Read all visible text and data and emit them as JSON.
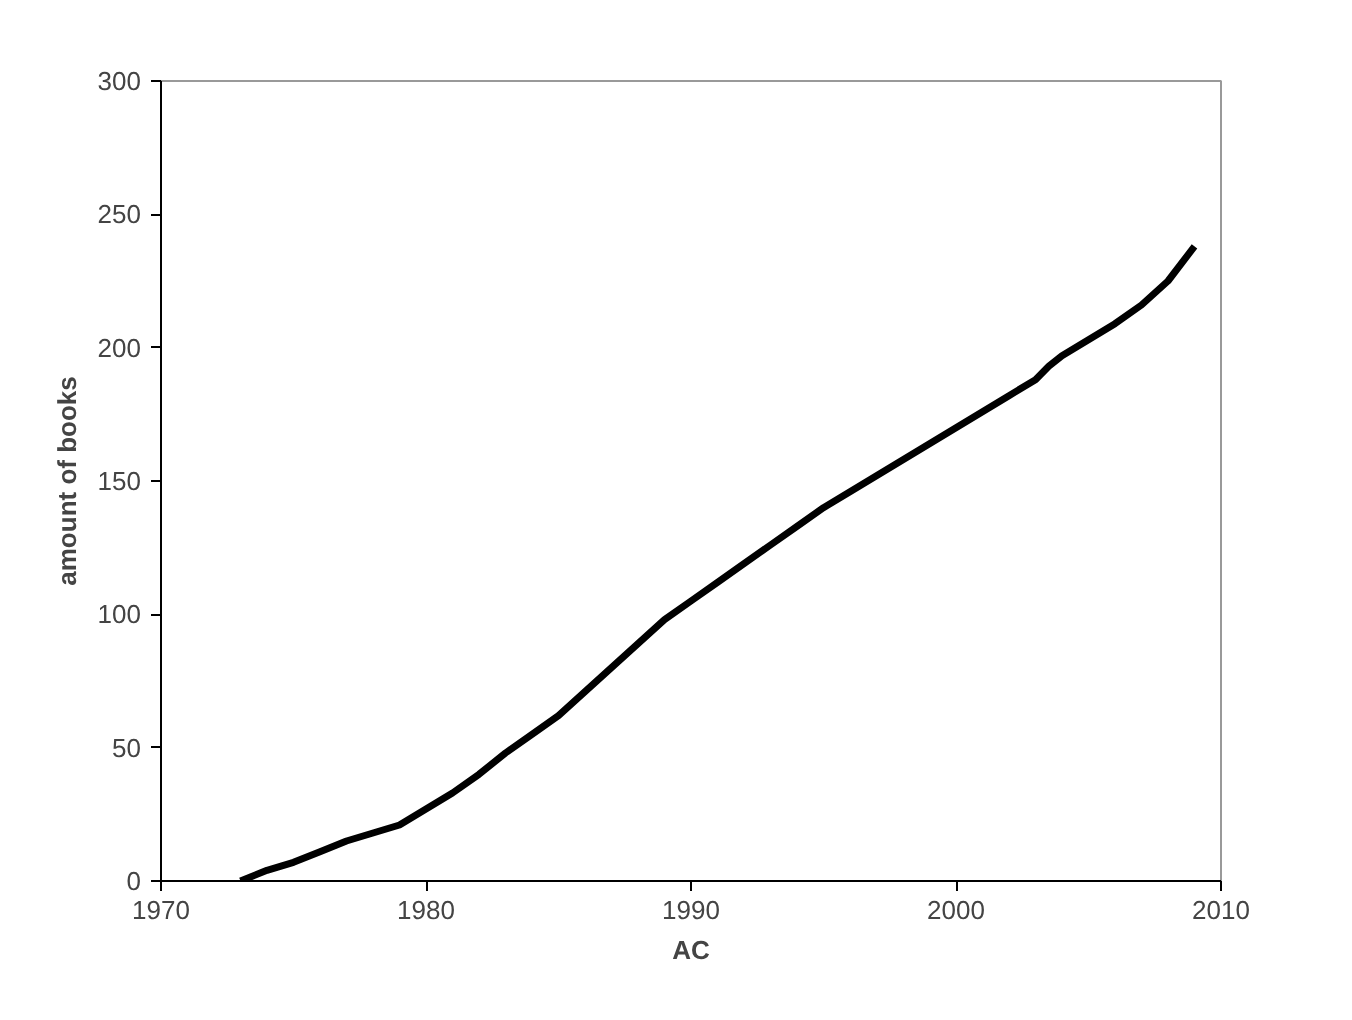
{
  "chart_data": {
    "type": "line",
    "xlabel": "AC",
    "ylabel": "amount of books",
    "x": [
      1973,
      1974,
      1975,
      1976,
      1977,
      1978,
      1979,
      1980,
      1981,
      1982,
      1983,
      1984,
      1985,
      1986,
      1987,
      1988,
      1989,
      1990,
      1991,
      1992,
      1993,
      1994,
      1995,
      1996,
      1997,
      1998,
      1999,
      2000,
      2001,
      2002,
      2003,
      2003.5,
      2004,
      2005,
      2006,
      2007,
      2008,
      2009
    ],
    "series": [
      {
        "color": "#000000",
        "values": [
          0,
          4,
          7,
          11,
          15,
          18,
          21,
          27,
          33,
          40,
          48,
          55,
          62,
          71,
          80,
          89,
          98,
          105,
          112,
          119,
          126,
          133,
          140,
          146,
          152,
          158,
          164,
          170,
          176,
          182,
          188,
          193,
          197,
          203,
          209,
          216,
          225,
          238
        ]
      }
    ],
    "xlim": [
      1970,
      2010
    ],
    "ylim": [
      0,
      300
    ],
    "xticks": [
      1970,
      1980,
      1990,
      2000,
      2010
    ],
    "yticks": [
      0,
      50,
      100,
      150,
      200,
      250,
      300
    ],
    "grid": false,
    "marker": "none",
    "line_style": "solid"
  }
}
